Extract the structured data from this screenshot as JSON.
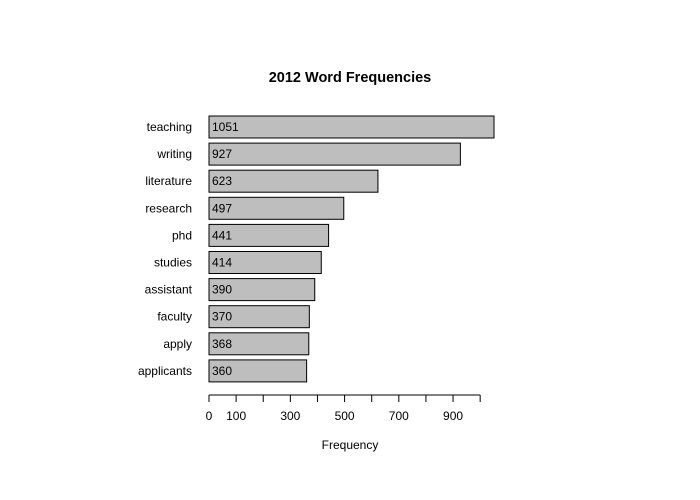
{
  "chart_data": {
    "type": "bar",
    "orientation": "horizontal",
    "title": "2012 Word Frequencies",
    "xlabel": "Frequency",
    "ylabel": "",
    "categories": [
      "teaching",
      "writing",
      "literature",
      "research",
      "phd",
      "studies",
      "assistant",
      "faculty",
      "apply",
      "applicants"
    ],
    "values": [
      1051,
      927,
      623,
      497,
      441,
      414,
      390,
      370,
      368,
      360
    ],
    "xlim": [
      0,
      1051
    ],
    "x_ticks": [
      0,
      100,
      200,
      300,
      400,
      500,
      600,
      700,
      800,
      900,
      1000
    ],
    "x_tick_labels": [
      "0",
      "100",
      "",
      "300",
      "",
      "500",
      "",
      "700",
      "",
      "900",
      ""
    ],
    "grid": false,
    "legend": "none",
    "colors": {
      "bar_fill": "#bebebe",
      "bar_stroke": "#000000",
      "text": "#000000"
    }
  }
}
